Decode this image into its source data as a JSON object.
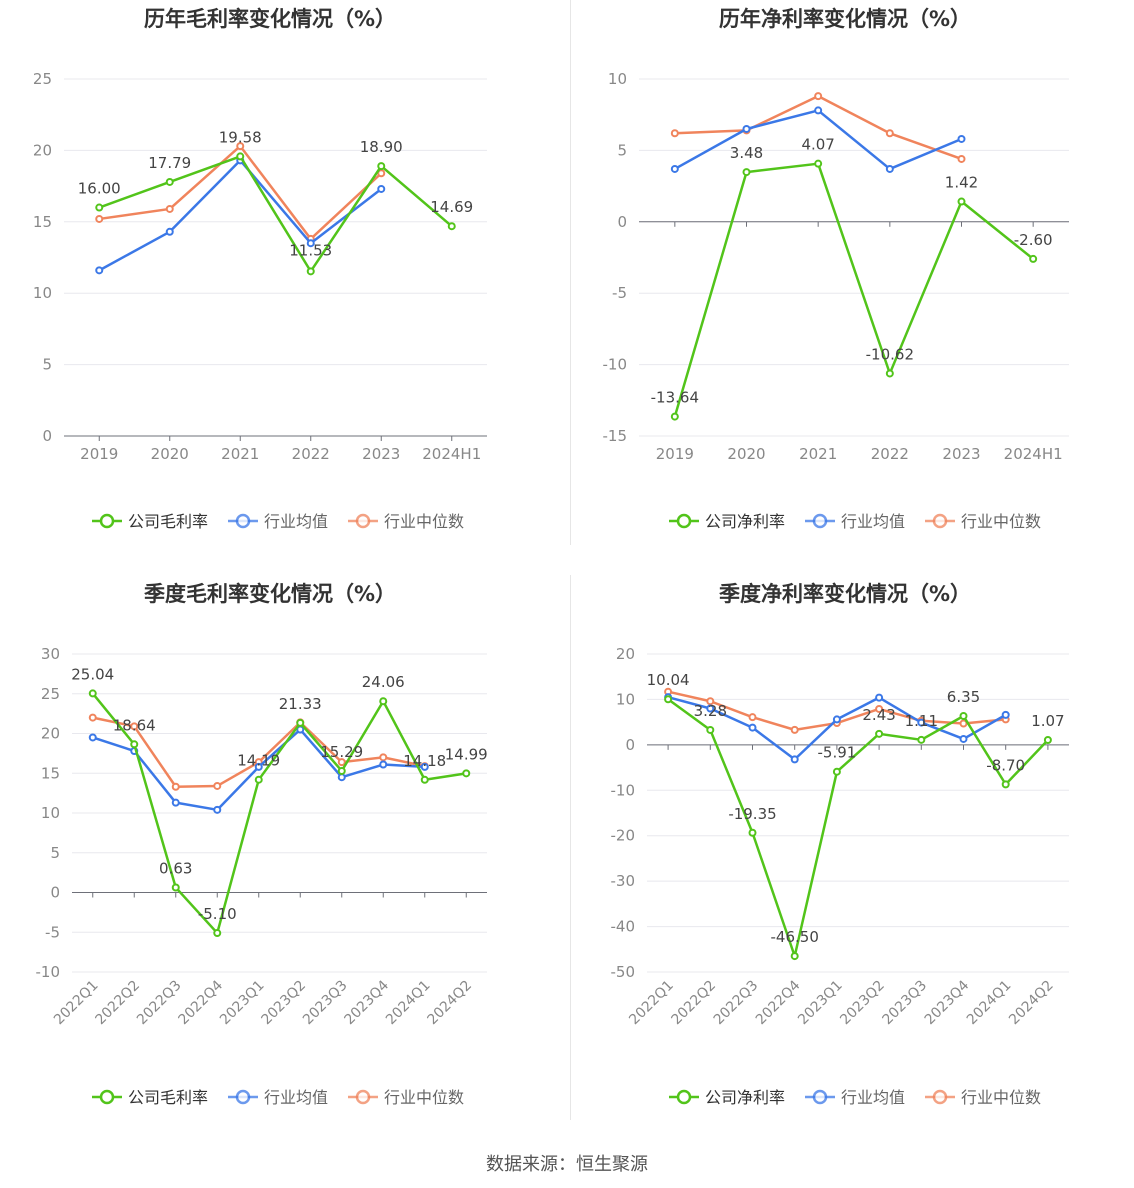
{
  "legend": {
    "company_gross": "公司毛利率",
    "company_net": "公司净利率",
    "industry_avg": "行业均值",
    "industry_median": "行业中位数"
  },
  "colors": {
    "company": "#52c41a",
    "industry_avg": "#3b78e7",
    "industry_median": "#f0845c"
  },
  "source_label": "数据来源：恒生聚源",
  "chart_data": [
    {
      "type": "line",
      "title": "历年毛利率变化情况（%）",
      "categories": [
        "2019",
        "2020",
        "2021",
        "2022",
        "2023",
        "2024H1"
      ],
      "ylim": [
        0,
        25
      ],
      "yticks": [
        0,
        5,
        10,
        15,
        20,
        25
      ],
      "grid": true,
      "legend_position": "bottom",
      "series": [
        {
          "name": "公司毛利率",
          "values": [
            16.0,
            17.79,
            19.58,
            11.53,
            18.9,
            14.69
          ],
          "labels": [
            "16.00",
            "17.79",
            "19.58",
            "11.53",
            "18.90",
            "14.69"
          ]
        },
        {
          "name": "行业均值",
          "values": [
            11.6,
            14.3,
            19.3,
            13.5,
            17.3,
            null
          ]
        },
        {
          "name": "行业中位数",
          "values": [
            15.2,
            15.9,
            20.3,
            13.8,
            18.4,
            null
          ]
        }
      ]
    },
    {
      "type": "line",
      "title": "历年净利率变化情况（%）",
      "categories": [
        "2019",
        "2020",
        "2021",
        "2022",
        "2023",
        "2024H1"
      ],
      "ylim": [
        -15,
        10
      ],
      "yticks": [
        -15,
        -10,
        -5,
        0,
        5,
        10
      ],
      "grid": true,
      "legend_position": "bottom",
      "series": [
        {
          "name": "公司净利率",
          "values": [
            -13.64,
            3.48,
            4.07,
            -10.62,
            1.42,
            -2.6
          ],
          "labels": [
            "-13.64",
            "3.48",
            "4.07",
            "-10.62",
            "1.42",
            "-2.60"
          ]
        },
        {
          "name": "行业均值",
          "values": [
            3.7,
            6.5,
            7.8,
            3.7,
            5.8,
            null
          ]
        },
        {
          "name": "行业中位数",
          "values": [
            6.2,
            6.4,
            8.8,
            6.2,
            4.4,
            null
          ]
        }
      ]
    },
    {
      "type": "line",
      "title": "季度毛利率变化情况（%）",
      "categories": [
        "2022Q1",
        "2022Q2",
        "2022Q3",
        "2022Q4",
        "2023Q1",
        "2023Q2",
        "2023Q3",
        "2023Q4",
        "2024Q1",
        "2024Q2"
      ],
      "ylim": [
        -10,
        30
      ],
      "yticks": [
        -10,
        -5,
        0,
        5,
        10,
        15,
        20,
        25,
        30
      ],
      "grid": true,
      "legend_position": "bottom",
      "series": [
        {
          "name": "公司毛利率",
          "values": [
            25.04,
            18.64,
            0.63,
            -5.1,
            14.19,
            21.33,
            15.29,
            24.06,
            14.18,
            14.99
          ],
          "labels": [
            "25.04",
            "18.64",
            "0.63",
            "-5.10",
            "14.19",
            "21.33",
            "15.29",
            "24.06",
            "14.18",
            "14.99"
          ]
        },
        {
          "name": "行业均值",
          "values": [
            19.5,
            17.8,
            11.3,
            10.4,
            15.8,
            20.5,
            14.5,
            16.1,
            15.8,
            null
          ]
        },
        {
          "name": "行业中位数",
          "values": [
            22.0,
            20.9,
            13.3,
            13.4,
            16.4,
            21.4,
            16.4,
            17.0,
            15.9,
            null
          ]
        }
      ]
    },
    {
      "type": "line",
      "title": "季度净利率变化情况（%）",
      "categories": [
        "2022Q1",
        "2022Q2",
        "2022Q3",
        "2022Q4",
        "2023Q1",
        "2023Q2",
        "2023Q3",
        "2023Q4",
        "2024Q1",
        "2024Q2"
      ],
      "ylim": [
        -50,
        20
      ],
      "yticks": [
        -50,
        -40,
        -30,
        -20,
        -10,
        0,
        10,
        20
      ],
      "grid": true,
      "legend_position": "bottom",
      "series": [
        {
          "name": "公司净利率",
          "values": [
            10.04,
            3.28,
            -19.35,
            -46.5,
            -5.91,
            2.43,
            1.11,
            6.35,
            -8.7,
            1.07
          ],
          "labels": [
            "10.04",
            "3.28",
            "-19.35",
            "-46.50",
            "-5.91",
            "2.43",
            "1.11",
            "6.35",
            "-8.70",
            "1.07"
          ]
        },
        {
          "name": "行业均值",
          "values": [
            10.5,
            8.0,
            3.8,
            -3.2,
            5.6,
            10.4,
            4.9,
            1.3,
            6.6,
            null
          ]
        },
        {
          "name": "行业中位数",
          "values": [
            11.7,
            9.6,
            6.1,
            3.3,
            4.8,
            7.9,
            5.3,
            4.7,
            5.6,
            null
          ]
        }
      ]
    }
  ]
}
